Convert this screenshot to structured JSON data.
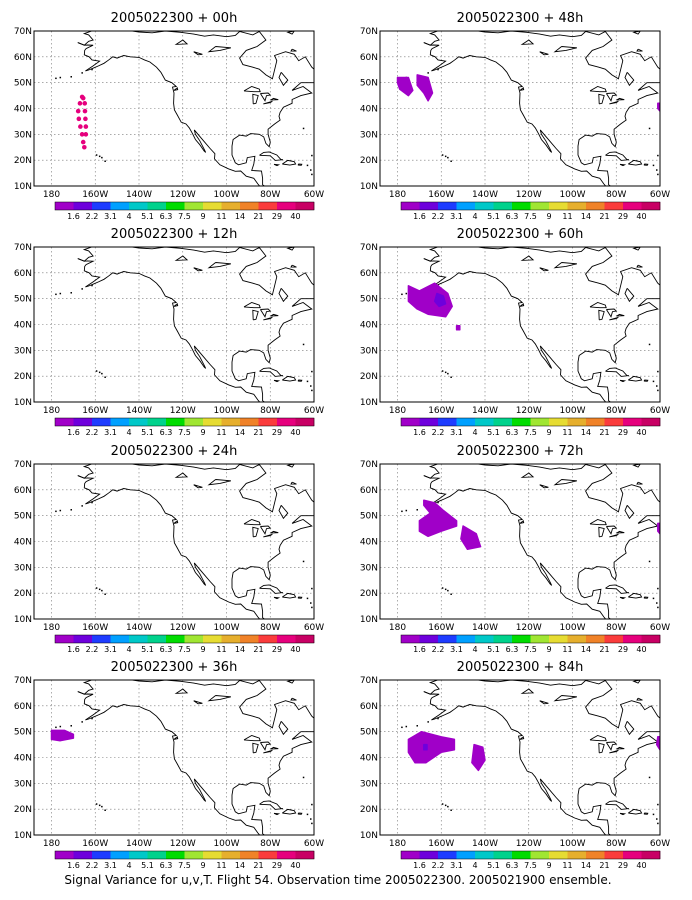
{
  "figure": {
    "caption": "Signal Variance for u,v,T. Flight 54. Observation time 2005022300. 2005021900 ensemble."
  },
  "axes": {
    "lat_ticks": [
      "70N",
      "60N",
      "50N",
      "40N",
      "30N",
      "20N",
      "10N"
    ],
    "lon_ticks": [
      "180",
      "160W",
      "140W",
      "120W",
      "100W",
      "80W",
      "60W"
    ]
  },
  "colorbar": {
    "labels": [
      "1.6",
      "2.2",
      "3.1",
      "4",
      "5.1",
      "6.3",
      "7.5",
      "9",
      "11",
      "14",
      "21",
      "29",
      "40"
    ],
    "colors": [
      "#a000c8",
      "#6e00dc",
      "#1e3cff",
      "#00a0ff",
      "#00c8c8",
      "#00d28c",
      "#00dc00",
      "#a0e632",
      "#e6dc32",
      "#e6af2d",
      "#f08228",
      "#fa3c3c",
      "#e6007d",
      "#c80064"
    ]
  },
  "chart_data": {
    "type": "map",
    "variable": "Signal Variance for u,v,T",
    "domain": {
      "lon_range": [
        "180",
        "60W"
      ],
      "lat_range": [
        "10N",
        "70N"
      ]
    },
    "panels": [
      {
        "title": "2005022300 + 00h",
        "features": [
          {
            "kind": "track",
            "color": "#e6007d",
            "level": "40",
            "points": [
              [
                -166,
                44.5
              ],
              [
                -167,
                42
              ],
              [
                -167.8,
                39
              ],
              [
                -167.5,
                36
              ],
              [
                -166.8,
                33
              ],
              [
                -166,
                30
              ],
              [
                -165.5,
                27
              ],
              [
                -165,
                25
              ],
              [
                -164.3,
                30
              ],
              [
                -164.3,
                33
              ],
              [
                -164.5,
                36
              ],
              [
                -164.7,
                39
              ],
              [
                -164.8,
                42
              ],
              [
                -165.5,
                44
              ]
            ]
          }
        ]
      },
      {
        "title": "2005022300 + 12h",
        "features": []
      },
      {
        "title": "2005022300 + 24h",
        "features": []
      },
      {
        "title": "2005022300 + 36h",
        "features": [
          {
            "kind": "region",
            "color": "#a000c8",
            "level": "1.6",
            "outline": [
              [
                -180,
                50.5
              ],
              [
                -174,
                50.5
              ],
              [
                -170,
                49
              ],
              [
                -170,
                47.5
              ],
              [
                -176,
                46.5
              ],
              [
                -180,
                47
              ]
            ]
          }
        ]
      },
      {
        "title": "2005022300 + 48h",
        "features": [
          {
            "kind": "region",
            "color": "#a000c8",
            "level": "1.6",
            "outline": [
              [
                -180,
                52
              ],
              [
                -175,
                52
              ],
              [
                -173,
                47
              ],
              [
                -175,
                45
              ],
              [
                -179,
                47.5
              ],
              [
                -180,
                50
              ]
            ]
          },
          {
            "kind": "region",
            "color": "#a000c8",
            "level": "1.6",
            "outline": [
              [
                -171,
                53
              ],
              [
                -166,
                52
              ],
              [
                -164,
                46
              ],
              [
                -166,
                43
              ],
              [
                -168,
                46
              ],
              [
                -171,
                49
              ]
            ]
          },
          {
            "kind": "region",
            "color": "#a000c8",
            "level": "1.6",
            "outline": [
              [
                -61,
                42
              ],
              [
                -60,
                42
              ],
              [
                -60,
                39
              ],
              [
                -61,
                40
              ]
            ]
          }
        ]
      },
      {
        "title": "2005022300 + 60h",
        "features": [
          {
            "kind": "region",
            "color": "#a000c8",
            "level": "1.6",
            "outline": [
              [
                -175,
                55
              ],
              [
                -170,
                53
              ],
              [
                -163,
                56
              ],
              [
                -157,
                52
              ],
              [
                -155,
                47
              ],
              [
                -158,
                43
              ],
              [
                -166,
                44
              ],
              [
                -171,
                46
              ],
              [
                -175,
                49
              ]
            ]
          },
          {
            "kind": "region",
            "color": "#6e00dc",
            "level": "2.2",
            "outline": [
              [
                -162,
                52
              ],
              [
                -159,
                51
              ],
              [
                -158,
                48
              ],
              [
                -161,
                47
              ],
              [
                -163,
                49
              ]
            ]
          },
          {
            "kind": "region",
            "color": "#a000c8",
            "level": "1.6",
            "outline": [
              [
                -153,
                39.5
              ],
              [
                -151.5,
                39.5
              ],
              [
                -151.5,
                38
              ],
              [
                -153,
                38
              ]
            ]
          }
        ]
      },
      {
        "title": "2005022300 + 72h",
        "features": [
          {
            "kind": "region",
            "color": "#a000c8",
            "level": "1.6",
            "outline": [
              [
                -168,
                56
              ],
              [
                -163,
                55
              ],
              [
                -159,
                52
              ],
              [
                -153,
                48
              ],
              [
                -153,
                46
              ],
              [
                -160,
                44
              ],
              [
                -166,
                42
              ],
              [
                -170,
                44
              ],
              [
                -170,
                48
              ],
              [
                -165,
                51
              ],
              [
                -168,
                54
              ]
            ]
          },
          {
            "kind": "region",
            "color": "#a000c8",
            "level": "1.6",
            "outline": [
              [
                -150,
                46
              ],
              [
                -144,
                43
              ],
              [
                -142,
                38
              ],
              [
                -148,
                37
              ],
              [
                -151,
                41
              ]
            ]
          },
          {
            "kind": "region",
            "color": "#a000c8",
            "level": "1.6",
            "outline": [
              [
                -61,
                47
              ],
              [
                -60,
                47
              ],
              [
                -60,
                43
              ],
              [
                -61,
                44
              ]
            ]
          }
        ]
      },
      {
        "title": "2005022300 + 84h",
        "features": [
          {
            "kind": "region",
            "color": "#a000c8",
            "level": "1.6",
            "outline": [
              [
                -175,
                47
              ],
              [
                -169,
                50
              ],
              [
                -160,
                48
              ],
              [
                -154,
                47
              ],
              [
                -154,
                43
              ],
              [
                -160,
                42
              ],
              [
                -167,
                38
              ],
              [
                -172,
                38
              ],
              [
                -175,
                42
              ]
            ]
          },
          {
            "kind": "region",
            "color": "#6e00dc",
            "level": "2.2",
            "outline": [
              [
                -168,
                45
              ],
              [
                -166.5,
                45
              ],
              [
                -166.5,
                43
              ],
              [
                -168,
                43
              ]
            ]
          },
          {
            "kind": "region",
            "color": "#a000c8",
            "level": "1.6",
            "outline": [
              [
                -145,
                45
              ],
              [
                -141,
                44
              ],
              [
                -140,
                39
              ],
              [
                -143,
                35
              ],
              [
                -146,
                38
              ]
            ]
          },
          {
            "kind": "region",
            "color": "#a000c8",
            "level": "1.6",
            "outline": [
              [
                -61,
                48
              ],
              [
                -60,
                48
              ],
              [
                -60,
                43
              ],
              [
                -61.5,
                45
              ]
            ]
          }
        ]
      }
    ]
  }
}
